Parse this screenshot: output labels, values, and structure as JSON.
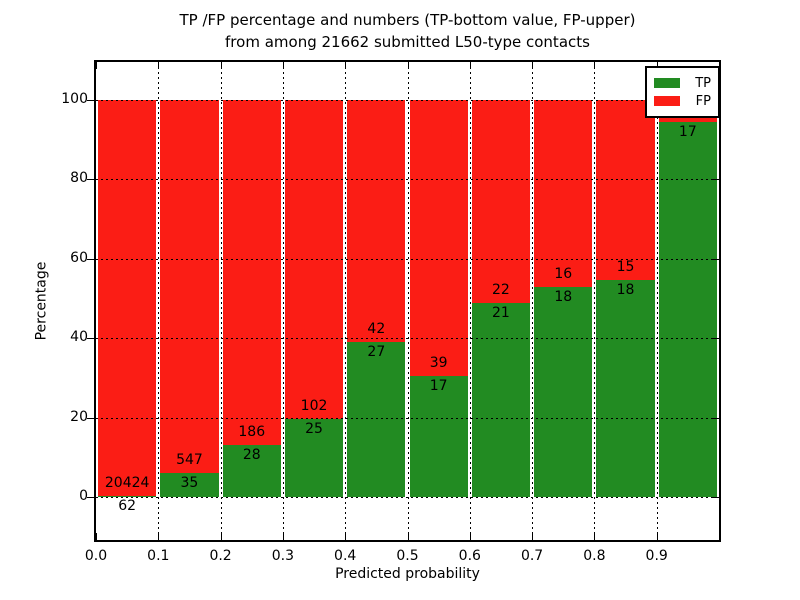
{
  "chart_data": {
    "type": "bar",
    "stacked": true,
    "normalized_to_percent": true,
    "title_line1": "TP /FP percentage and numbers (TP-bottom value, FP-upper)",
    "title_line2": "from among 21662 submitted L50-type contacts",
    "total_submitted_contacts": 21662,
    "xlabel": "Predicted probability",
    "ylabel": "Percentage",
    "x_tick_labels": [
      "0.0",
      "0.1",
      "0.2",
      "0.3",
      "0.4",
      "0.5",
      "0.6",
      "0.7",
      "0.8",
      "0.9"
    ],
    "y_tick_labels": [
      "0",
      "20",
      "40",
      "60",
      "80",
      "100"
    ],
    "y_ticks": [
      0,
      20,
      40,
      60,
      80,
      100
    ],
    "xlim": [
      0.0,
      1.0
    ],
    "ylim": [
      -11,
      110
    ],
    "grid": "dotted",
    "legend_position": "upper right",
    "legend": [
      {
        "label": "TP",
        "color": "#228b22"
      },
      {
        "label": "FP",
        "color": "#fb1d15"
      }
    ],
    "bins": [
      {
        "range": [
          0.0,
          0.1
        ],
        "tp": 62,
        "fp": 20424,
        "tp_pct": 0.3
      },
      {
        "range": [
          0.1,
          0.2
        ],
        "tp": 35,
        "fp": 547,
        "tp_pct": 6.01
      },
      {
        "range": [
          0.2,
          0.3
        ],
        "tp": 28,
        "fp": 186,
        "tp_pct": 13.08
      },
      {
        "range": [
          0.3,
          0.4
        ],
        "tp": 25,
        "fp": 102,
        "tp_pct": 19.69
      },
      {
        "range": [
          0.4,
          0.5
        ],
        "tp": 27,
        "fp": 42,
        "tp_pct": 39.13
      },
      {
        "range": [
          0.5,
          0.6
        ],
        "tp": 17,
        "fp": 39,
        "tp_pct": 30.36
      },
      {
        "range": [
          0.6,
          0.7
        ],
        "tp": 21,
        "fp": 22,
        "tp_pct": 48.84
      },
      {
        "range": [
          0.7,
          0.8
        ],
        "tp": 18,
        "fp": 16,
        "tp_pct": 52.94
      },
      {
        "range": [
          0.8,
          0.9
        ],
        "tp": 18,
        "fp": 15,
        "tp_pct": 54.55
      },
      {
        "range": [
          0.9,
          1.0
        ],
        "tp": 17,
        "fp": null,
        "fp_label_hidden_by_legend": true,
        "tp_pct": 94.4
      }
    ],
    "colors": {
      "tp": "#228b22",
      "fp": "#fb1d15",
      "grid": "#000000",
      "background": "#ffffff",
      "text": "#000000"
    }
  }
}
